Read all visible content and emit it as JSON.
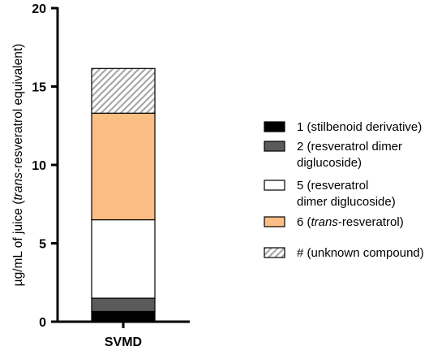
{
  "chart_data": {
    "type": "bar",
    "stacked": true,
    "categories": [
      "SVMD"
    ],
    "ylabel": {
      "prefix": "µg/mL of juice (",
      "italic": "trans",
      "suffix": "-resveratrol equivalent)"
    },
    "ylim": [
      0,
      20
    ],
    "yticks": [
      "0",
      "5",
      "10",
      "15",
      "20"
    ],
    "grid": false,
    "legend_position": "right",
    "series": [
      {
        "name": "1 (stilbenoid derivative)",
        "legend_lines": [
          [
            {
              "text": "1 (stilbenoid derivative)",
              "italic": false
            }
          ]
        ],
        "values": [
          0.65
        ],
        "color": "#000000",
        "pattern": "solid"
      },
      {
        "name": "2 (resveratrol dimer diglucoside)",
        "legend_lines": [
          [
            {
              "text": "2 (resveratrol dimer",
              "italic": false
            }
          ],
          [
            {
              "text": "diglucoside)",
              "italic": false
            }
          ]
        ],
        "values": [
          0.85
        ],
        "color": "#5a5a5a",
        "pattern": "solid"
      },
      {
        "name": "5 (resveratrol dimer diglucoside)",
        "legend_lines": [
          [
            {
              "text": "5 (resveratrol",
              "italic": false
            }
          ],
          [
            {
              "text": "dimer diglucoside)",
              "italic": false
            }
          ]
        ],
        "values": [
          5.0
        ],
        "color": "#ffffff",
        "pattern": "solid"
      },
      {
        "name": "6 (trans-resveratrol)",
        "legend_lines": [
          [
            {
              "text": "6 (",
              "italic": false
            },
            {
              "text": "trans",
              "italic": true
            },
            {
              "text": "-resveratrol)",
              "italic": false
            }
          ]
        ],
        "values": [
          6.8
        ],
        "color": "#fbbf85",
        "pattern": "solid"
      },
      {
        "name": "# (unknown compound)",
        "legend_lines": [
          [
            {
              "text": "# (unknown compound)",
              "italic": false
            }
          ]
        ],
        "values": [
          2.85
        ],
        "color": "#bfbfbf",
        "pattern": "hatch"
      }
    ]
  }
}
